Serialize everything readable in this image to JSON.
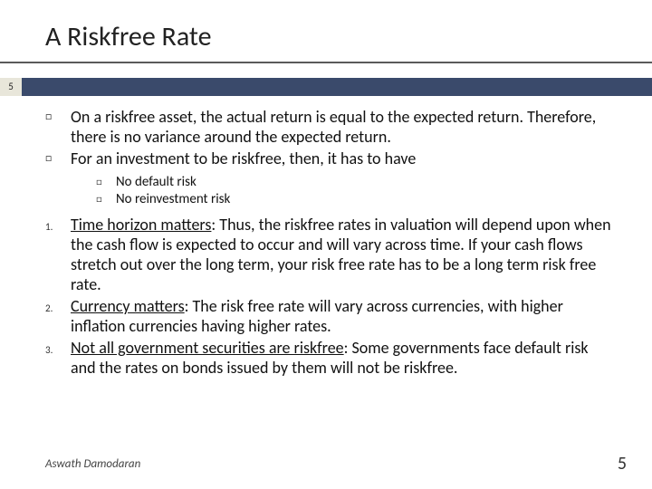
{
  "colors": {
    "band": "#3a4a6b",
    "badge_bg": "#e8e6da",
    "underline": "#5a5a5a"
  },
  "title": "A Riskfree Rate",
  "page_badge": "5",
  "box_marker": "□",
  "bullets": {
    "b1": "On a riskfree asset, the actual return is equal to the expected return. Therefore, there is no variance around the expected return.",
    "b2": "For an investment to be riskfree, then, it has to have",
    "sub1": "No default risk",
    "sub2": "No reinvestment risk"
  },
  "numbered": {
    "n1_lead": "Time horizon matters",
    "n1_rest": ": Thus, the riskfree rates in valuation will depend upon when the cash flow is expected to occur and will vary across time. If your cash flows stretch out over the long term, your risk free rate has to be a long term risk free rate.",
    "n2_lead": "Currency matters",
    "n2_rest": ": The risk free rate will vary across currencies, with higher inflation currencies having higher rates.",
    "n3_lead": "Not all government securities are riskfree",
    "n3_rest": ": Some governments face default risk and the rates on bonds issued by them will not be riskfree."
  },
  "num_markers": {
    "m1": "1.",
    "m2": "2.",
    "m3": "3."
  },
  "footer": {
    "author": "Aswath Damodaran",
    "page": "5"
  }
}
